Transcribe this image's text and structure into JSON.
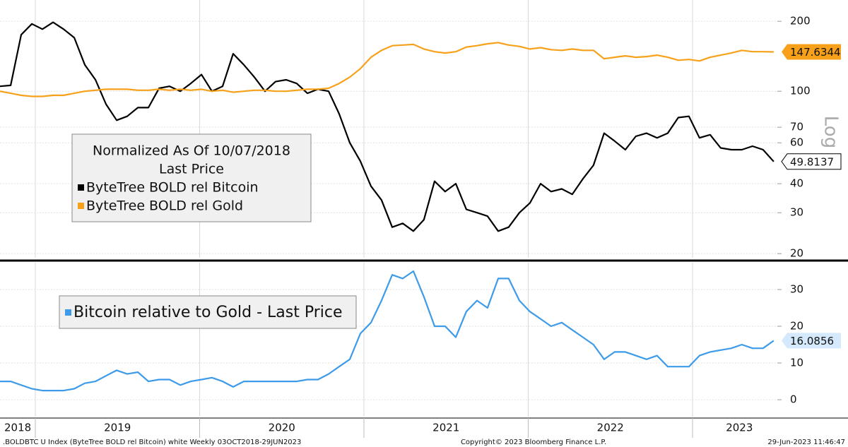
{
  "chart_data": [
    {
      "type": "line",
      "yscale": "log",
      "ylabel": "Log",
      "legend_title": "Normalized As Of 10/07/2018",
      "legend_subtitle": "Last Price",
      "xlim": [
        2018.785,
        2023.516
      ],
      "ylim": [
        19.2,
        247
      ],
      "yticks": [
        20,
        30,
        40,
        60,
        70,
        100,
        200
      ],
      "xgrid": [
        2019,
        2020,
        2021,
        2022,
        2023
      ],
      "grid": true,
      "x": [
        2018.785,
        2018.85,
        2018.914,
        2018.979,
        2019.043,
        2019.108,
        2019.172,
        2019.237,
        2019.301,
        2019.366,
        2019.43,
        2019.495,
        2019.559,
        2019.624,
        2019.688,
        2019.753,
        2019.817,
        2019.882,
        2019.946,
        2020.011,
        2020.075,
        2020.14,
        2020.204,
        2020.269,
        2020.333,
        2020.398,
        2020.462,
        2020.527,
        2020.591,
        2020.656,
        2020.72,
        2020.785,
        2020.849,
        2020.914,
        2020.978,
        2021.043,
        2021.107,
        2021.172,
        2021.236,
        2021.301,
        2021.365,
        2021.43,
        2021.494,
        2021.559,
        2021.623,
        2021.688,
        2021.752,
        2021.817,
        2021.881,
        2021.946,
        2022.01,
        2022.075,
        2022.139,
        2022.204,
        2022.268,
        2022.333,
        2022.397,
        2022.462,
        2022.526,
        2022.591,
        2022.655,
        2022.72,
        2022.784,
        2022.849,
        2022.913,
        2022.978,
        2023.042,
        2023.107,
        2023.171,
        2023.236,
        2023.3,
        2023.365,
        2023.429,
        2023.494
      ],
      "series": [
        {
          "name": "ByteTree BOLD rel Bitcoin",
          "color": "#000000",
          "values": [
            105,
            106,
            175,
            195,
            185,
            198,
            185,
            170,
            130,
            112,
            88,
            75,
            78,
            85,
            85,
            103,
            105,
            100,
            108,
            118,
            100,
            105,
            145,
            130,
            115,
            100,
            110,
            112,
            108,
            98,
            102,
            100,
            80,
            60,
            50,
            39,
            34,
            26,
            27,
            25,
            28,
            41,
            37,
            40,
            31,
            30,
            29,
            25,
            26,
            30,
            33,
            40,
            37,
            38,
            36,
            42,
            48,
            66,
            61,
            56,
            64,
            66,
            63,
            66,
            77,
            78,
            63,
            65,
            57,
            56,
            56,
            58,
            56,
            49.8137
          ]
        },
        {
          "name": "ByteTree BOLD rel Gold",
          "color": "#f7a11a",
          "values": [
            100,
            98,
            96,
            95,
            95,
            96,
            96,
            98,
            100,
            101,
            102,
            102,
            102,
            101,
            101,
            102,
            101,
            102,
            101,
            102,
            100,
            101,
            99,
            100,
            101,
            101,
            100,
            100,
            101,
            102,
            102,
            103,
            108,
            115,
            125,
            140,
            150,
            157,
            158,
            159,
            152,
            148,
            146,
            148,
            155,
            157,
            160,
            162,
            158,
            156,
            152,
            154,
            151,
            150,
            152,
            150,
            150,
            138,
            140,
            142,
            140,
            141,
            143,
            140,
            136,
            137,
            135,
            140,
            143,
            146,
            150,
            148,
            148,
            147.6344
          ]
        }
      ]
    },
    {
      "type": "line",
      "xlim": [
        2018.785,
        2023.516
      ],
      "ylim": [
        -4.6,
        37.3
      ],
      "yticks": [
        0,
        10,
        20,
        30
      ],
      "xgrid": [
        2019,
        2020,
        2021,
        2022,
        2023
      ],
      "grid": true,
      "xticks": [
        {
          "value": 2018.893,
          "label": "2018"
        },
        {
          "value": 2019.5,
          "label": "2019"
        },
        {
          "value": 2020.5,
          "label": "2020"
        },
        {
          "value": 2021.5,
          "label": "2021"
        },
        {
          "value": 2022.5,
          "label": "2022"
        },
        {
          "value": 2023.285,
          "label": "2023"
        }
      ],
      "x": [
        2018.785,
        2018.85,
        2018.914,
        2018.979,
        2019.043,
        2019.108,
        2019.172,
        2019.237,
        2019.301,
        2019.366,
        2019.43,
        2019.495,
        2019.559,
        2019.624,
        2019.688,
        2019.753,
        2019.817,
        2019.882,
        2019.946,
        2020.011,
        2020.075,
        2020.14,
        2020.204,
        2020.269,
        2020.333,
        2020.398,
        2020.462,
        2020.527,
        2020.591,
        2020.656,
        2020.72,
        2020.785,
        2020.849,
        2020.914,
        2020.978,
        2021.043,
        2021.107,
        2021.172,
        2021.236,
        2021.301,
        2021.365,
        2021.43,
        2021.494,
        2021.559,
        2021.623,
        2021.688,
        2021.752,
        2021.817,
        2021.881,
        2021.946,
        2022.01,
        2022.075,
        2022.139,
        2022.204,
        2022.268,
        2022.333,
        2022.397,
        2022.462,
        2022.526,
        2022.591,
        2022.655,
        2022.72,
        2022.784,
        2022.849,
        2022.913,
        2022.978,
        2023.042,
        2023.107,
        2023.171,
        2023.236,
        2023.3,
        2023.365,
        2023.429,
        2023.494
      ],
      "series": [
        {
          "name": "Bitcoin relative to Gold - Last Price",
          "color": "#3d9be9",
          "values": [
            5,
            5,
            4,
            3,
            2.5,
            2.5,
            2.5,
            3,
            4.5,
            5,
            6.5,
            8,
            7,
            7.5,
            5,
            5.5,
            5.5,
            4,
            5,
            5.5,
            6,
            5,
            3.5,
            5,
            5,
            5,
            5,
            5,
            5,
            5.5,
            5.5,
            7,
            9,
            11,
            18,
            21,
            27,
            34,
            33,
            35,
            28,
            20,
            20,
            17,
            24,
            27,
            25,
            33,
            33,
            27,
            24,
            22,
            20,
            21,
            19,
            17,
            15,
            11,
            13,
            13,
            12,
            11,
            12,
            9,
            9,
            9,
            12,
            13,
            13.5,
            14,
            15,
            14,
            14,
            16.0856
          ]
        }
      ]
    }
  ],
  "footer": {
    "left": ".BOLDBTC U Index (ByteTree BOLD rel Bitcoin) white  Weekly 03OCT2018-29JUN2023",
    "center": "Copyright© 2023 Bloomberg Finance L.P.",
    "right": "29-Jun-2023 11:46:47"
  }
}
